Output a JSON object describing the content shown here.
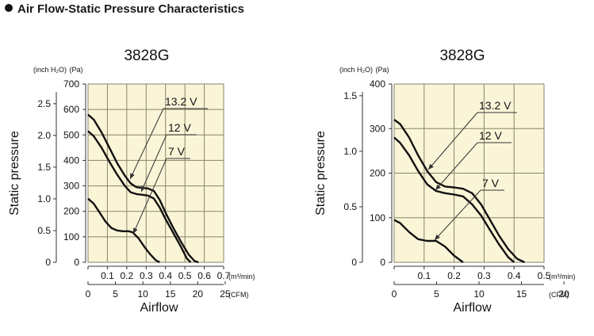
{
  "page": {
    "heading": "Air Flow-Static Pressure Characteristics"
  },
  "colors": {
    "plot_background": "#fbf5d8",
    "grid": "#8a8468",
    "curve": "#111111"
  },
  "chart_data": [
    {
      "type": "line",
      "title": "3828G",
      "xlabel": "Airflow",
      "ylabel": "Static pressure",
      "x_unit_primary": "(m³/min)",
      "x_unit_secondary": "(CFM)",
      "y_unit_primary": "(Pa)",
      "y_unit_secondary": "(inch H₂O)",
      "xlim": [
        0,
        0.7
      ],
      "ylim": [
        0,
        700
      ],
      "x_ticks": [
        0,
        0.1,
        0.2,
        0.3,
        0.4,
        0.5,
        0.6,
        0.7
      ],
      "x_tick_labels": [
        "0.1",
        "0.2",
        "0.3",
        "0.4",
        "0.5",
        "0.6",
        "0.7"
      ],
      "y_ticks": [
        0,
        100,
        200,
        300,
        400,
        500,
        600,
        700
      ],
      "y_tick_labels": [
        "0",
        "100",
        "200",
        "300",
        "400",
        "500",
        "600",
        "700"
      ],
      "secondary_x_ticks": [
        0,
        5,
        10,
        15,
        20,
        25
      ],
      "secondary_x_tick_labels": [
        "0",
        "5",
        "10",
        "15",
        "20",
        "25"
      ],
      "secondary_x_per_primary": 35.315,
      "secondary_y_ticks": [
        0,
        0.5,
        1.0,
        1.5,
        2.0,
        2.5
      ],
      "secondary_y_tick_labels": [
        "0",
        "0.5",
        "1.0",
        "1.5",
        "2.0",
        "2.5"
      ],
      "secondary_y_per_primary": 0.0040146,
      "grid": true,
      "series": [
        {
          "name": "13.2 V",
          "x": [
            0,
            0.03,
            0.07,
            0.11,
            0.15,
            0.19,
            0.22,
            0.25,
            0.28,
            0.31,
            0.34,
            0.37,
            0.4,
            0.44,
            0.48,
            0.52,
            0.55,
            0.57
          ],
          "y": [
            580,
            560,
            510,
            450,
            390,
            340,
            310,
            295,
            292,
            290,
            280,
            245,
            195,
            135,
            80,
            30,
            5,
            0
          ]
        },
        {
          "name": "12 V",
          "x": [
            0,
            0.03,
            0.07,
            0.11,
            0.15,
            0.19,
            0.22,
            0.25,
            0.28,
            0.31,
            0.34,
            0.37,
            0.4,
            0.44,
            0.48,
            0.51,
            0.53
          ],
          "y": [
            515,
            495,
            450,
            395,
            345,
            300,
            275,
            268,
            265,
            262,
            250,
            215,
            170,
            115,
            60,
            15,
            0
          ]
        },
        {
          "name": "7 V",
          "x": [
            0,
            0.03,
            0.06,
            0.09,
            0.12,
            0.15,
            0.18,
            0.21,
            0.23,
            0.26,
            0.29,
            0.32,
            0.35,
            0.37
          ],
          "y": [
            250,
            230,
            195,
            160,
            135,
            125,
            122,
            122,
            118,
            95,
            62,
            32,
            8,
            0
          ]
        }
      ],
      "annotations": [
        {
          "text": "13.2 V",
          "series": "13.2 V"
        },
        {
          "text": "12 V",
          "series": "12 V"
        },
        {
          "text": "7 V",
          "series": "7 V"
        }
      ]
    },
    {
      "type": "line",
      "title": "3828G",
      "xlabel": "Airflow",
      "ylabel": "Static pressure",
      "x_unit_primary": "(m³/min)",
      "x_unit_secondary": "(CFM)",
      "y_unit_primary": "(Pa)",
      "y_unit_secondary": "(inch H₂O)",
      "xlim": [
        0,
        0.5
      ],
      "ylim": [
        0,
        400
      ],
      "x_ticks": [
        0,
        0.1,
        0.2,
        0.3,
        0.4,
        0.5
      ],
      "x_tick_labels": [
        "0.1",
        "0.2",
        "0.3",
        "0.4",
        "0.5"
      ],
      "y_ticks": [
        0,
        100,
        200,
        300,
        400
      ],
      "y_tick_labels": [
        "0",
        "100",
        "200",
        "300",
        "400"
      ],
      "secondary_x_ticks": [
        0,
        5,
        10,
        15,
        20
      ],
      "secondary_x_tick_labels": [
        "0",
        "5",
        "10",
        "15",
        "20"
      ],
      "secondary_x_per_primary": 35.315,
      "secondary_y_ticks": [
        0,
        0.5,
        1.0,
        1.5
      ],
      "secondary_y_tick_labels": [
        "0",
        "0.5",
        "1.0",
        "1.5"
      ],
      "secondary_y_per_primary": 0.0040146,
      "grid": true,
      "series": [
        {
          "name": "13.2 V",
          "x": [
            0,
            0.02,
            0.05,
            0.08,
            0.11,
            0.14,
            0.17,
            0.2,
            0.23,
            0.26,
            0.29,
            0.32,
            0.35,
            0.38,
            0.41,
            0.435
          ],
          "y": [
            320,
            310,
            280,
            240,
            205,
            180,
            170,
            168,
            165,
            155,
            130,
            95,
            60,
            30,
            8,
            0
          ]
        },
        {
          "name": "12 V",
          "x": [
            0,
            0.02,
            0.05,
            0.08,
            0.11,
            0.14,
            0.17,
            0.2,
            0.23,
            0.26,
            0.29,
            0.32,
            0.35,
            0.38,
            0.4
          ],
          "y": [
            280,
            268,
            240,
            205,
            175,
            160,
            155,
            152,
            148,
            130,
            105,
            72,
            40,
            12,
            0
          ]
        },
        {
          "name": "7 V",
          "x": [
            0,
            0.02,
            0.05,
            0.08,
            0.11,
            0.14,
            0.17,
            0.2,
            0.23
          ],
          "y": [
            95,
            88,
            68,
            52,
            48,
            48,
            35,
            15,
            0
          ]
        }
      ],
      "annotations": [
        {
          "text": "13.2 V",
          "series": "13.2 V"
        },
        {
          "text": "12 V",
          "series": "12 V"
        },
        {
          "text": "7 V",
          "series": "7 V"
        }
      ]
    }
  ]
}
